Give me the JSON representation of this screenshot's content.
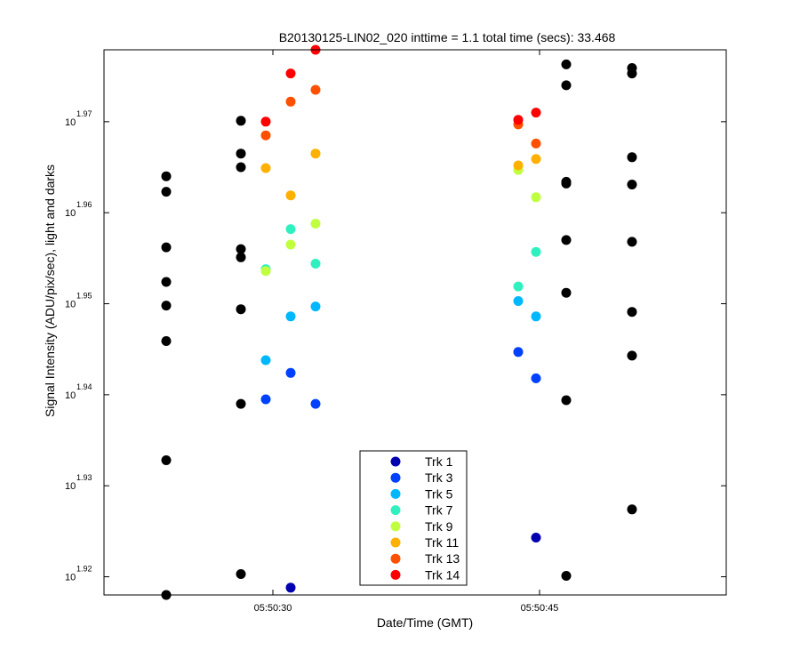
{
  "chart_data": {
    "type": "scatter",
    "title": "B20130125-LIN02_020 inttime = 1.1 total time (secs): 33.468",
    "xlabel": "Date/Time (GMT)",
    "ylabel": "Signal Intensity (ADU/pix/sec), light and darks",
    "x_axis": {
      "unit": "seconds after 05:50",
      "range": [
        20.5,
        55.5
      ],
      "ticks": [
        30,
        45
      ],
      "tick_labels": [
        "05:50:30",
        "05:50:45"
      ]
    },
    "y_axis": {
      "scale": "log10 (exponent shown)",
      "range": [
        1.918,
        1.9779
      ],
      "ticks": [
        1.92,
        1.93,
        1.94,
        1.95,
        1.96,
        1.97
      ],
      "tick_base": "10",
      "tick_exponents": [
        "1.92",
        "1.93",
        "1.94",
        "1.95",
        "1.96",
        "1.97"
      ]
    },
    "grid": false,
    "legend_position": "bottom-center",
    "series": [
      {
        "name": "Trk 1",
        "color": "#0000b0",
        "points": [
          [
            44.8,
            1.9243
          ],
          [
            31.0,
            1.9188
          ]
        ]
      },
      {
        "name": "Trk 3",
        "color": "#0040ff",
        "points": [
          [
            29.6,
            1.9395
          ],
          [
            31.0,
            1.9424
          ],
          [
            32.4,
            1.939
          ],
          [
            43.8,
            1.9447
          ],
          [
            44.8,
            1.9418
          ]
        ]
      },
      {
        "name": "Trk 5",
        "color": "#00b8ff",
        "points": [
          [
            29.6,
            1.9438
          ],
          [
            31.0,
            1.9486
          ],
          [
            32.4,
            1.9497
          ],
          [
            43.8,
            1.9503
          ],
          [
            44.8,
            1.9486
          ]
        ]
      },
      {
        "name": "Trk 7",
        "color": "#30f0c0",
        "points": [
          [
            29.6,
            1.9538
          ],
          [
            31.0,
            1.9582
          ],
          [
            32.4,
            1.9544
          ],
          [
            43.8,
            1.9519
          ],
          [
            44.8,
            1.9557
          ]
        ]
      },
      {
        "name": "Trk 9",
        "color": "#c0ff40",
        "points": [
          [
            29.6,
            1.9536
          ],
          [
            31.0,
            1.9565
          ],
          [
            32.4,
            1.9588
          ],
          [
            43.8,
            1.9647
          ],
          [
            44.8,
            1.9617
          ]
        ]
      },
      {
        "name": "Trk 11",
        "color": "#ffb000",
        "points": [
          [
            29.6,
            1.9649
          ],
          [
            31.0,
            1.9619
          ],
          [
            32.4,
            1.9665
          ],
          [
            43.8,
            1.9652
          ],
          [
            44.8,
            1.9659
          ]
        ]
      },
      {
        "name": "Trk 13",
        "color": "#ff5000",
        "points": [
          [
            29.6,
            1.9685
          ],
          [
            31.0,
            1.9722
          ],
          [
            32.4,
            1.9735
          ],
          [
            43.8,
            1.9697
          ],
          [
            44.8,
            1.9676
          ]
        ]
      },
      {
        "name": "Trk 14",
        "color": "#ff0000",
        "points": [
          [
            29.6,
            1.97
          ],
          [
            31.0,
            1.9753
          ],
          [
            32.4,
            1.9779
          ],
          [
            43.8,
            1.9702
          ],
          [
            44.8,
            1.971
          ]
        ]
      },
      {
        "name": "",
        "color": "#000000",
        "points": [
          [
            24.0,
            1.964
          ],
          [
            24.0,
            1.9623
          ],
          [
            24.0,
            1.9562
          ],
          [
            24.0,
            1.9524
          ],
          [
            24.0,
            1.9498
          ],
          [
            24.0,
            1.9459
          ],
          [
            24.0,
            1.9328
          ],
          [
            24.0,
            1.918
          ],
          [
            28.2,
            1.9701
          ],
          [
            28.2,
            1.9665
          ],
          [
            28.2,
            1.965
          ],
          [
            28.2,
            1.956
          ],
          [
            28.2,
            1.9551
          ],
          [
            28.2,
            1.9494
          ],
          [
            28.2,
            1.939
          ],
          [
            28.2,
            1.9203
          ],
          [
            46.5,
            1.9763
          ],
          [
            46.5,
            1.974
          ],
          [
            46.5,
            1.9634
          ],
          [
            46.5,
            1.9632
          ],
          [
            46.5,
            1.957
          ],
          [
            46.5,
            1.9512
          ],
          [
            46.5,
            1.9394
          ],
          [
            46.5,
            1.9201
          ],
          [
            50.2,
            1.9759
          ],
          [
            50.2,
            1.9753
          ],
          [
            50.2,
            1.9661
          ],
          [
            50.2,
            1.9631
          ],
          [
            50.2,
            1.9568
          ],
          [
            50.2,
            1.9491
          ],
          [
            50.2,
            1.9443
          ],
          [
            50.2,
            1.9274
          ]
        ]
      }
    ]
  }
}
